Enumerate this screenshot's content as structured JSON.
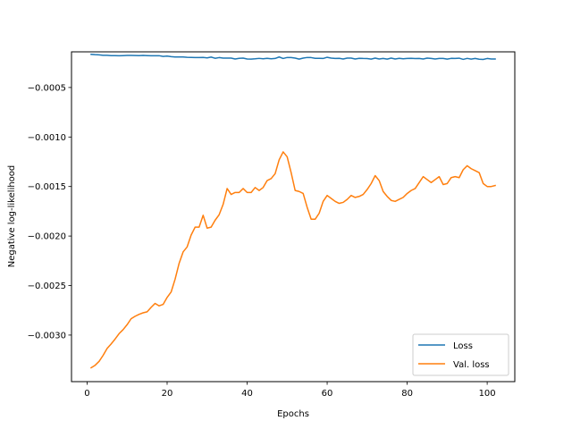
{
  "chart_data": {
    "type": "line",
    "title": "",
    "xlabel": "Epochs",
    "ylabel": "Negative log-likelihood",
    "xlim": [
      -3.9,
      106.9
    ],
    "ylim": [
      -0.00347,
      -0.00014
    ],
    "xticks": [
      0,
      20,
      40,
      60,
      80,
      100
    ],
    "xtick_labels": [
      "0",
      "20",
      "40",
      "60",
      "80",
      "100"
    ],
    "yticks": [
      -0.0005,
      -0.001,
      -0.0015,
      -0.002,
      -0.0025,
      -0.003
    ],
    "ytick_labels": [
      "−0.0005",
      "−0.0010",
      "−0.0015",
      "−0.0020",
      "−0.0025",
      "−0.0030"
    ],
    "grid": false,
    "legend_position": "lower right",
    "series": [
      {
        "name": "Loss",
        "color": "#1f77b4",
        "x": [
          1,
          2,
          3,
          4,
          5,
          6,
          7,
          8,
          9,
          10,
          11,
          12,
          13,
          14,
          15,
          16,
          17,
          18,
          19,
          20,
          21,
          22,
          23,
          24,
          25,
          26,
          27,
          28,
          29,
          30,
          31,
          32,
          33,
          34,
          35,
          36,
          37,
          38,
          39,
          40,
          41,
          42,
          43,
          44,
          45,
          46,
          47,
          48,
          49,
          50,
          51,
          52,
          53,
          54,
          55,
          56,
          57,
          58,
          59,
          60,
          61,
          62,
          63,
          64,
          65,
          66,
          67,
          68,
          69,
          70,
          71,
          72,
          73,
          74,
          75,
          76,
          77,
          78,
          79,
          80,
          81,
          82,
          83,
          84,
          85,
          86,
          87,
          88,
          89,
          90,
          91,
          92,
          93,
          94,
          95,
          96,
          97,
          98,
          99,
          100,
          101,
          102
        ],
        "y": [
          -0.000165,
          -0.000168,
          -0.00017,
          -0.000175,
          -0.000175,
          -0.000178,
          -0.000178,
          -0.00018,
          -0.000178,
          -0.000176,
          -0.000176,
          -0.000177,
          -0.000178,
          -0.000176,
          -0.000178,
          -0.00018,
          -0.00018,
          -0.000179,
          -0.000186,
          -0.000183,
          -0.000188,
          -0.000192,
          -0.000192,
          -0.000192,
          -0.000195,
          -0.000196,
          -0.000198,
          -0.000198,
          -0.000196,
          -0.000201,
          -0.000193,
          -0.000205,
          -0.000198,
          -0.000203,
          -0.000203,
          -0.000203,
          -0.000212,
          -0.000205,
          -0.000203,
          -0.000212,
          -0.000213,
          -0.00021,
          -0.000206,
          -0.00021,
          -0.000205,
          -0.00021,
          -0.000207,
          -0.000192,
          -0.000207,
          -0.000197,
          -0.000198,
          -0.000203,
          -0.000213,
          -0.000203,
          -0.000197,
          -0.000198,
          -0.000205,
          -0.000205,
          -0.000207,
          -0.000195,
          -0.000203,
          -0.000207,
          -0.000205,
          -0.000212,
          -0.000203,
          -0.000203,
          -0.000212,
          -0.000205,
          -0.000207,
          -0.000208,
          -0.000213,
          -0.000203,
          -0.000212,
          -0.000207,
          -0.000213,
          -0.000203,
          -0.000212,
          -0.000205,
          -0.00021,
          -0.000207,
          -0.000205,
          -0.000208,
          -0.000207,
          -0.000212,
          -0.000203,
          -0.000207,
          -0.000212,
          -0.000207,
          -0.000207,
          -0.000213,
          -0.000206,
          -0.000207,
          -0.000204,
          -0.000216,
          -0.000206,
          -0.000213,
          -0.000207,
          -0.000214,
          -0.000217,
          -0.000207,
          -0.000212,
          -0.000212
        ]
      },
      {
        "name": "Val. loss",
        "color": "#ff7f0e",
        "x": [
          1,
          2,
          3,
          4,
          5,
          6,
          7,
          8,
          9,
          10,
          11,
          12,
          13,
          14,
          15,
          16,
          17,
          18,
          19,
          20,
          21,
          22,
          23,
          24,
          25,
          26,
          27,
          28,
          29,
          30,
          31,
          32,
          33,
          34,
          35,
          36,
          37,
          38,
          39,
          40,
          41,
          42,
          43,
          44,
          45,
          46,
          47,
          48,
          49,
          50,
          51,
          52,
          53,
          54,
          55,
          56,
          57,
          58,
          59,
          60,
          61,
          62,
          63,
          64,
          65,
          66,
          67,
          68,
          69,
          70,
          71,
          72,
          73,
          74,
          75,
          76,
          77,
          78,
          79,
          80,
          81,
          82,
          83,
          84,
          85,
          86,
          87,
          88,
          89,
          90,
          91,
          92,
          93,
          94,
          95,
          96,
          97,
          98,
          99,
          100,
          101,
          102
        ],
        "y": [
          -0.00333,
          -0.003305,
          -0.003265,
          -0.003205,
          -0.003135,
          -0.00309,
          -0.00304,
          -0.002985,
          -0.002945,
          -0.002895,
          -0.002835,
          -0.00281,
          -0.00279,
          -0.002775,
          -0.002765,
          -0.00272,
          -0.00268,
          -0.002705,
          -0.00269,
          -0.00262,
          -0.002565,
          -0.002435,
          -0.002275,
          -0.00216,
          -0.00211,
          -0.00199,
          -0.00191,
          -0.00191,
          -0.00179,
          -0.00192,
          -0.00191,
          -0.00184,
          -0.001785,
          -0.00168,
          -0.00152,
          -0.00158,
          -0.00156,
          -0.00156,
          -0.00152,
          -0.00156,
          -0.00156,
          -0.00151,
          -0.00154,
          -0.00151,
          -0.00144,
          -0.00142,
          -0.00137,
          -0.00123,
          -0.00115,
          -0.0012,
          -0.00136,
          -0.00154,
          -0.00155,
          -0.00157,
          -0.00171,
          -0.00183,
          -0.00183,
          -0.00177,
          -0.00165,
          -0.00159,
          -0.00162,
          -0.00165,
          -0.00167,
          -0.00166,
          -0.00163,
          -0.00159,
          -0.00161,
          -0.0016,
          -0.00158,
          -0.00153,
          -0.00147,
          -0.00139,
          -0.00144,
          -0.00155,
          -0.0016,
          -0.00164,
          -0.00165,
          -0.00163,
          -0.00161,
          -0.00157,
          -0.00154,
          -0.00152,
          -0.00146,
          -0.0014,
          -0.00143,
          -0.00146,
          -0.00143,
          -0.0014,
          -0.00148,
          -0.00147,
          -0.00141,
          -0.0014,
          -0.00141,
          -0.00133,
          -0.00129,
          -0.00132,
          -0.00134,
          -0.00136,
          -0.00147,
          -0.0015,
          -0.0015,
          -0.00149
        ]
      }
    ]
  }
}
